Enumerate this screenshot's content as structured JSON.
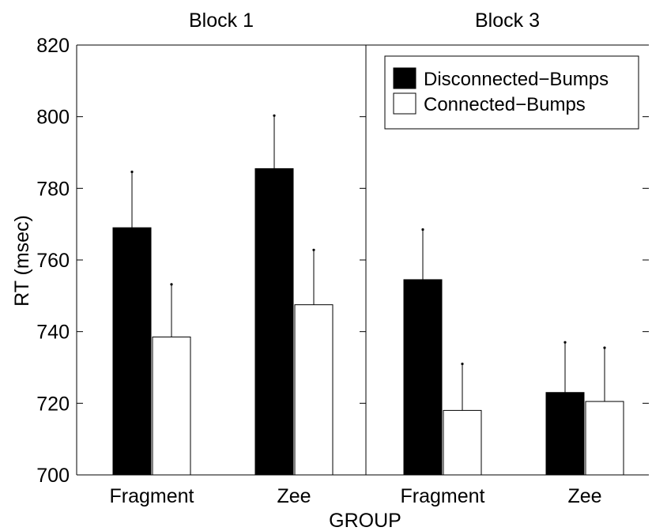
{
  "chart_data": {
    "type": "bar",
    "xlabel": "GROUP",
    "ylabel": "RT (msec)",
    "ylim": [
      700,
      820
    ],
    "yticks": [
      700,
      720,
      740,
      760,
      780,
      800,
      820
    ],
    "legend": {
      "placement": "top-right of second panel",
      "entries": [
        "Disconnected−Bumps",
        "Connected−Bumps"
      ]
    },
    "series_colors": [
      "#000000",
      "#ffffff"
    ],
    "panels": [
      {
        "title": "Block 1",
        "categories": [
          "Fragment",
          "Zee"
        ],
        "series": [
          {
            "name": "Disconnected−Bumps",
            "values": [
              769,
              785.5
            ],
            "errors": [
              15.6,
              14.8
            ]
          },
          {
            "name": "Connected−Bumps",
            "values": [
              738.5,
              747.5
            ],
            "errors": [
              14.7,
              15.3
            ]
          }
        ]
      },
      {
        "title": "Block 3",
        "categories": [
          "Fragment",
          "Zee"
        ],
        "series": [
          {
            "name": "Disconnected−Bumps",
            "values": [
              754.5,
              723
            ],
            "errors": [
              14,
              14
            ]
          },
          {
            "name": "Connected−Bumps",
            "values": [
              718,
              720.5
            ],
            "errors": [
              13,
              15
            ]
          }
        ]
      }
    ]
  }
}
